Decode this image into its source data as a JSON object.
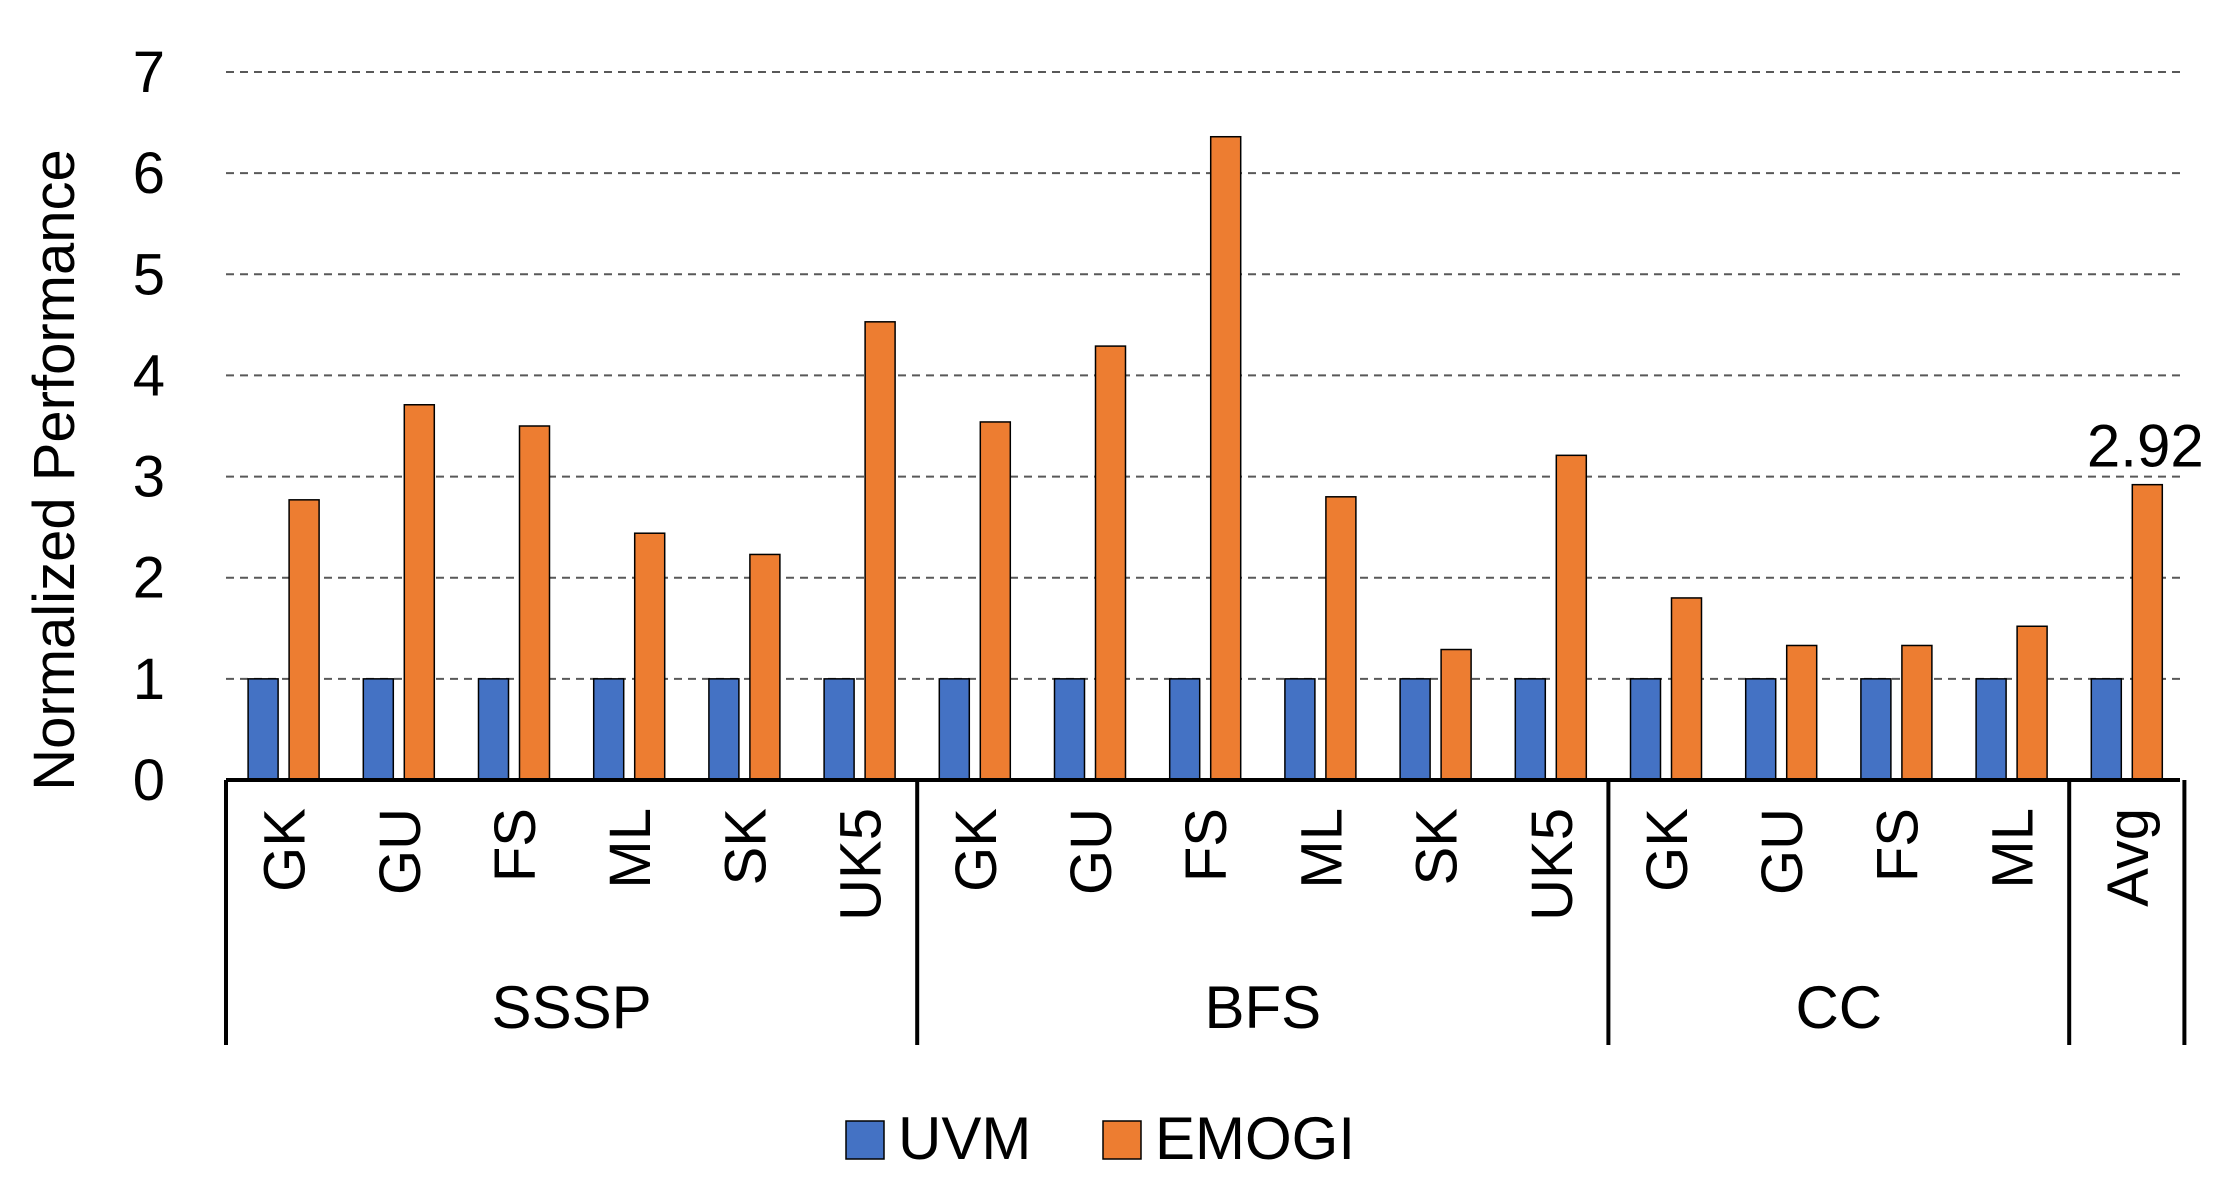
{
  "chart_data": {
    "type": "bar",
    "ylabel": "Normalized Performance",
    "ylim": [
      0,
      7
    ],
    "yticks": [
      0,
      1,
      2,
      3,
      4,
      5,
      6,
      7
    ],
    "grid": "horizontal dashed",
    "legend_placement": "bottom-center",
    "groups": [
      {
        "label": "SSSP",
        "categories": [
          "GK",
          "GU",
          "FS",
          "ML",
          "SK",
          "UK5"
        ]
      },
      {
        "label": "BFS",
        "categories": [
          "GK",
          "GU",
          "FS",
          "ML",
          "SK",
          "UK5"
        ]
      },
      {
        "label": "CC",
        "categories": [
          "GK",
          "GU",
          "FS",
          "ML"
        ]
      },
      {
        "label": "",
        "categories": [
          "Avg"
        ]
      }
    ],
    "series": [
      {
        "name": "UVM",
        "color": "#4472C4",
        "values": [
          1,
          1,
          1,
          1,
          1,
          1,
          1,
          1,
          1,
          1,
          1,
          1,
          1,
          1,
          1,
          1,
          1
        ]
      },
      {
        "name": "EMOGI",
        "color": "#ED7D31",
        "values": [
          2.77,
          3.71,
          3.5,
          2.44,
          2.23,
          4.53,
          3.54,
          4.29,
          6.36,
          2.8,
          1.29,
          3.21,
          1.8,
          1.33,
          1.33,
          1.52,
          2.92
        ]
      }
    ],
    "annotations": [
      {
        "text": "2.92",
        "category_index": 16,
        "series": "EMOGI"
      }
    ]
  }
}
